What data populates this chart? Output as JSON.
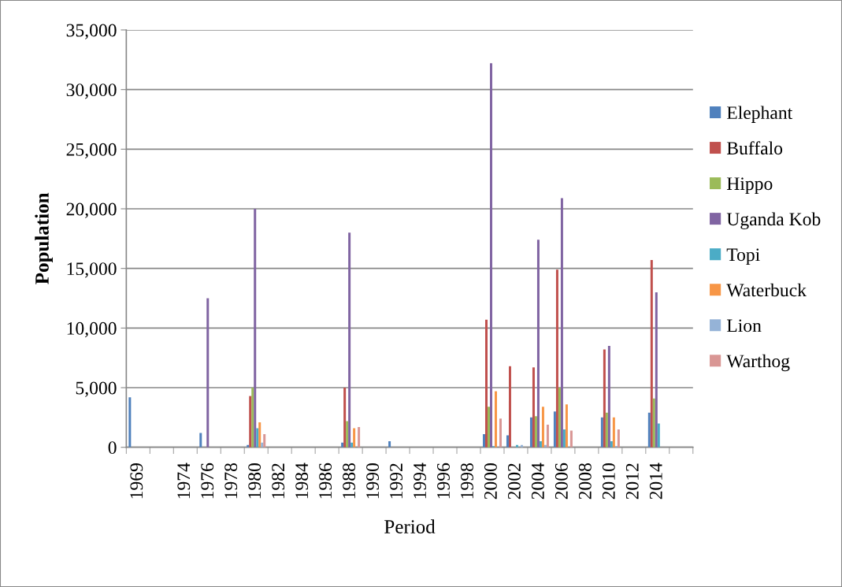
{
  "chart_data": {
    "type": "bar",
    "xlabel": "Period",
    "ylabel": "Population",
    "categories": [
      "1969",
      null,
      "1974",
      "1976",
      "1978",
      "1980",
      "1982",
      "1984",
      "1986",
      "1988",
      "1990",
      "1992",
      "1994",
      "1996",
      "1998",
      "2000",
      "2002",
      "2004",
      "2006",
      "2008",
      "2010",
      "2012",
      "2014",
      null
    ],
    "series": [
      {
        "name": "Elephant",
        "color": "#4f81bd",
        "values": [
          4200,
          null,
          null,
          1200,
          null,
          200,
          null,
          null,
          null,
          400,
          null,
          500,
          null,
          null,
          null,
          1100,
          1000,
          2500,
          3000,
          null,
          2500,
          null,
          2900,
          null
        ]
      },
      {
        "name": "Buffalo",
        "color": "#c0504d",
        "values": [
          null,
          null,
          null,
          null,
          null,
          4300,
          null,
          null,
          null,
          5000,
          null,
          null,
          null,
          null,
          null,
          10700,
          6800,
          6700,
          14900,
          null,
          8200,
          null,
          15700,
          null
        ]
      },
      {
        "name": "Hippo",
        "color": "#9bbb59",
        "values": [
          null,
          null,
          null,
          null,
          null,
          5000,
          null,
          null,
          null,
          2200,
          null,
          null,
          null,
          null,
          null,
          3400,
          null,
          2600,
          5000,
          null,
          2900,
          null,
          4100,
          null
        ]
      },
      {
        "name": "Uganda Kob",
        "color": "#8064a2",
        "values": [
          null,
          null,
          null,
          12500,
          null,
          20000,
          null,
          null,
          null,
          18000,
          null,
          null,
          null,
          null,
          null,
          32200,
          null,
          17400,
          20900,
          null,
          8500,
          null,
          13000,
          null
        ]
      },
      {
        "name": "Topi",
        "color": "#4bacc6",
        "values": [
          null,
          null,
          null,
          null,
          null,
          1600,
          null,
          null,
          null,
          400,
          null,
          null,
          null,
          null,
          null,
          100,
          200,
          500,
          1500,
          null,
          500,
          null,
          2000,
          null
        ]
      },
      {
        "name": "Waterbuck",
        "color": "#f79646",
        "values": [
          null,
          null,
          null,
          null,
          null,
          2100,
          null,
          null,
          null,
          1600,
          null,
          null,
          null,
          null,
          null,
          4700,
          null,
          3400,
          3600,
          null,
          2500,
          null,
          null,
          null
        ]
      },
      {
        "name": "Lion",
        "color": "#95b3d7",
        "values": [
          null,
          null,
          null,
          null,
          null,
          400,
          null,
          null,
          null,
          null,
          null,
          null,
          null,
          null,
          null,
          null,
          200,
          200,
          null,
          null,
          100,
          null,
          null,
          null
        ]
      },
      {
        "name": "Warthog",
        "color": "#d99694",
        "values": [
          null,
          null,
          null,
          null,
          null,
          1100,
          null,
          null,
          null,
          1700,
          null,
          null,
          null,
          null,
          null,
          2400,
          null,
          1900,
          1400,
          null,
          1500,
          null,
          null,
          null
        ]
      }
    ],
    "ylim": [
      0,
      35000
    ],
    "yticks": [
      0,
      {
        "value": 5000,
        "label": "5,000"
      },
      {
        "value": 10000,
        "label": "10,000"
      },
      {
        "value": 15000,
        "label": "15,000"
      },
      {
        "value": 20000,
        "label": "20,000"
      },
      {
        "value": 25000,
        "label": "25,000"
      },
      {
        "value": 30000,
        "label": "30,000"
      },
      {
        "value": 35000,
        "label": "35,000"
      }
    ],
    "grid": "y",
    "legend": "right"
  }
}
